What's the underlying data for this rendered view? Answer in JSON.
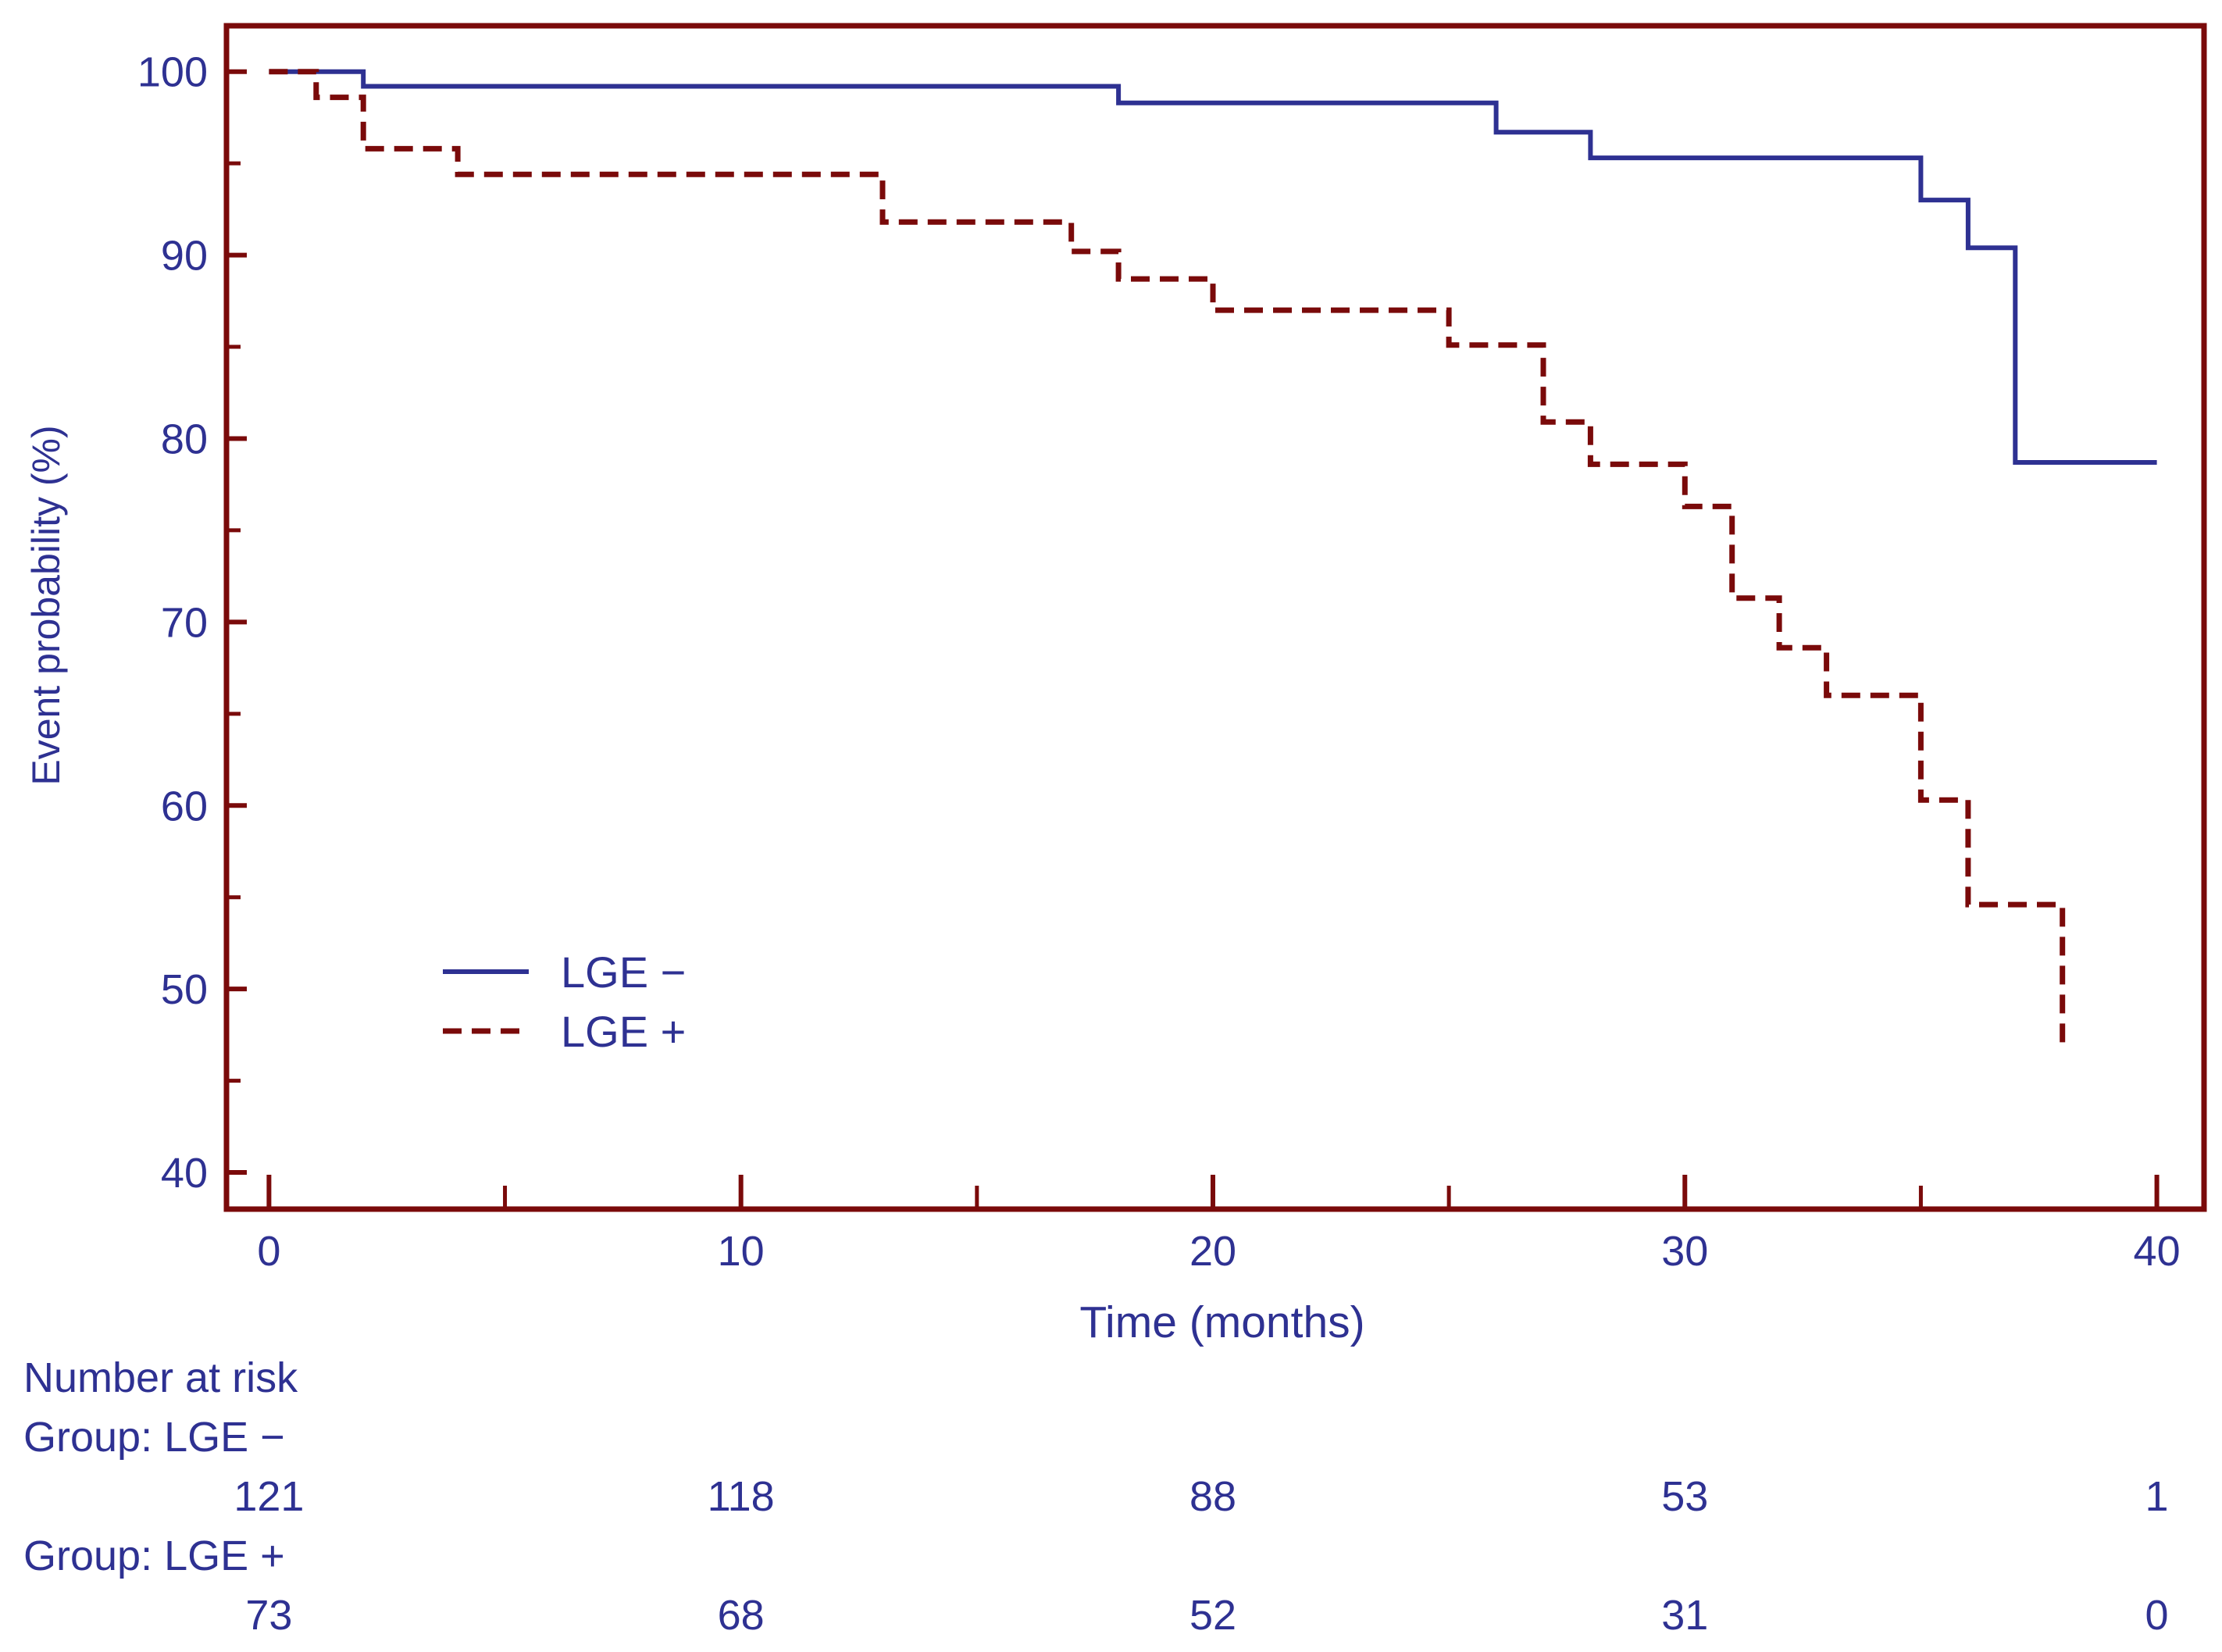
{
  "chart_data": {
    "type": "line",
    "subtype": "kaplan-meier",
    "xlabel": "Time (months)",
    "ylabel": "Event probability (%)",
    "xlim": [
      -0.9,
      41
    ],
    "ylim": [
      38,
      102.5
    ],
    "x_ticks": [
      0,
      10,
      20,
      30,
      40
    ],
    "x_minor_ticks": [
      5,
      15,
      25,
      35
    ],
    "y_ticks": [
      40,
      50,
      60,
      70,
      80,
      90,
      100
    ],
    "y_minor_ticks": [
      45,
      55,
      65,
      75,
      85,
      95
    ],
    "x_tick_labels": [
      "0",
      "10",
      "20",
      "30",
      "40"
    ],
    "y_tick_labels": [
      "40",
      "50",
      "60",
      "70",
      "80",
      "90",
      "100"
    ],
    "grid": false,
    "legend_position": "lower-left",
    "series": [
      {
        "name": "LGE −",
        "line_style": "solid",
        "color": "#2E3192",
        "x": [
          0,
          2,
          18,
          26,
          28,
          35,
          36,
          37,
          40
        ],
        "y": [
          100,
          99.2,
          98.3,
          96.7,
          95.3,
          93.0,
          90.4,
          78.7,
          78.7
        ]
      },
      {
        "name": "LGE +",
        "line_style": "dashed",
        "color": "#7A0A0A",
        "x": [
          0,
          1,
          2,
          4,
          13,
          17,
          18,
          20,
          25,
          27,
          28,
          30,
          31,
          32,
          33,
          35,
          36,
          38
        ],
        "y": [
          100,
          98.6,
          95.8,
          94.4,
          91.8,
          90.2,
          88.7,
          87.0,
          85.1,
          80.9,
          78.6,
          76.3,
          71.3,
          68.6,
          66.0,
          60.3,
          54.6,
          46.6
        ]
      }
    ],
    "at_risk": {
      "title": "Number at risk",
      "times": [
        0,
        10,
        20,
        30,
        40
      ],
      "groups": [
        {
          "label": "Group: LGE −",
          "counts": [
            "121",
            "118",
            "88",
            "53",
            "1"
          ]
        },
        {
          "label": "Group: LGE +",
          "counts": [
            "73",
            "68",
            "52",
            "31",
            "0"
          ]
        }
      ]
    }
  },
  "colors": {
    "frame": "#7A0A0A",
    "text": "#2E3192"
  }
}
